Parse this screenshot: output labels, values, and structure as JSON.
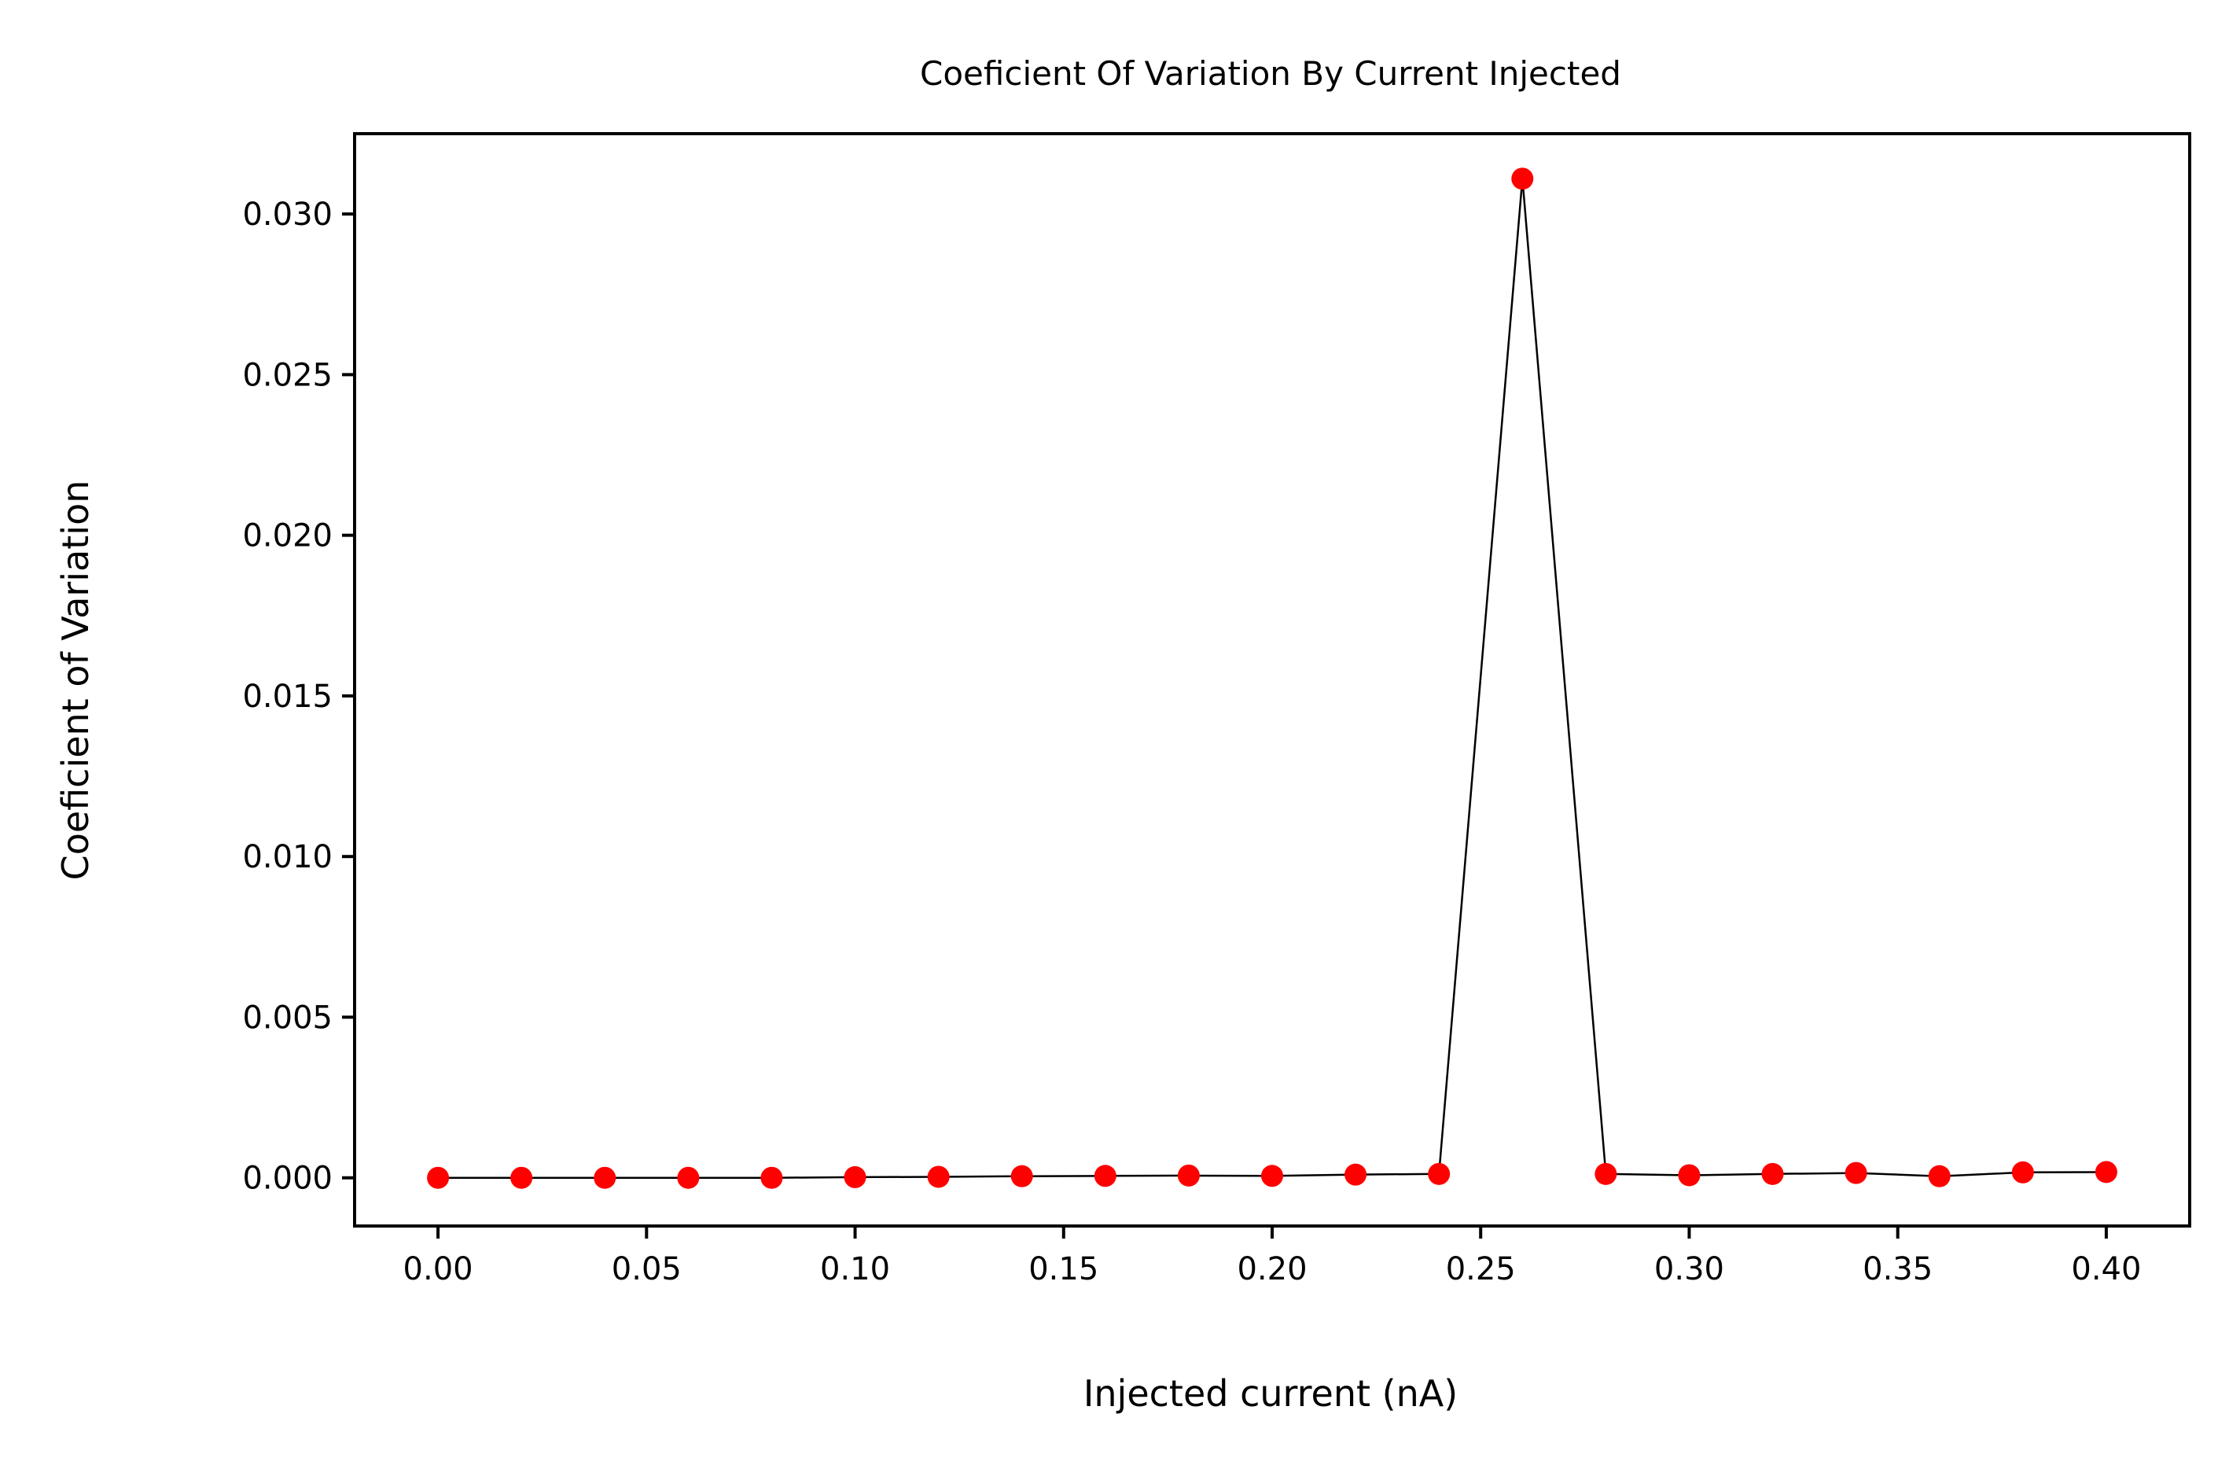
{
  "chart_data": {
    "type": "line",
    "title": "Coeficient Of Variation By Current Injected",
    "xlabel": "Injected current (nA)",
    "ylabel": "Coeficient of Variation",
    "xlim": [
      -0.02,
      0.42
    ],
    "ylim": [
      -0.0015,
      0.0325
    ],
    "x_ticks": [
      "0.00",
      "0.05",
      "0.10",
      "0.15",
      "0.20",
      "0.25",
      "0.30",
      "0.35",
      "0.40"
    ],
    "y_ticks": [
      "0.000",
      "0.005",
      "0.010",
      "0.015",
      "0.020",
      "0.025",
      "0.030"
    ],
    "grid": false,
    "legend": "none",
    "line_color": "#000000",
    "marker_color": "#ff0000",
    "series": [
      {
        "x": [
          0.0,
          0.02,
          0.04,
          0.06,
          0.08,
          0.1,
          0.12,
          0.14,
          0.16,
          0.18,
          0.2,
          0.22,
          0.24,
          0.26,
          0.28,
          0.3,
          0.32,
          0.34,
          0.36,
          0.38,
          0.4
        ],
        "values": [
          0.0,
          0.0,
          0.0,
          0.0,
          0.0,
          2e-05,
          3e-05,
          5e-05,
          6e-05,
          7e-05,
          6e-05,
          0.0001,
          0.00012,
          0.0311,
          0.00012,
          8e-05,
          0.00012,
          0.00015,
          5e-05,
          0.00017,
          0.00018
        ]
      }
    ]
  }
}
